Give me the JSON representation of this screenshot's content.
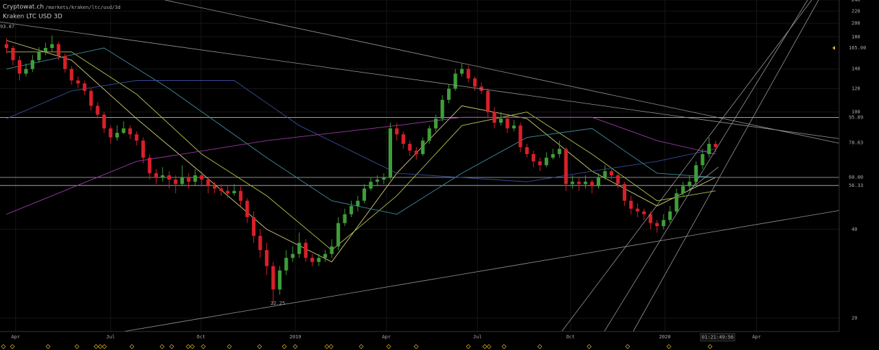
{
  "chart_data": {
    "type": "candlestick",
    "title": "Cryptowat.ch",
    "subtitle": "/markets/kraken/ltc/usd/3d",
    "market": "Kraken LTC USD 3D",
    "countdown": "01:21:49:56",
    "annotations": [
      "93.87",
      "22.25"
    ],
    "log_scale": true,
    "grid": true,
    "up_color": "#3f9e3a",
    "down_color": "#d8202a",
    "xlim": [
      -1,
      128
    ],
    "xticks": [
      {
        "value": 1.4,
        "label": "Apr"
      },
      {
        "value": 16,
        "label": "Jul"
      },
      {
        "value": 29.9,
        "label": "Oct"
      },
      {
        "value": 44.4,
        "label": "2019"
      },
      {
        "value": 58.4,
        "label": "Apr"
      },
      {
        "value": 72.4,
        "label": "Jul"
      },
      {
        "value": 86.7,
        "label": "Oct"
      },
      {
        "value": 101.2,
        "label": "2020"
      },
      {
        "value": 115.3,
        "label": "Apr"
      }
    ],
    "ylim": [
      18,
      240
    ],
    "yticks": [
      20,
      40,
      100,
      120,
      140,
      180,
      200,
      220,
      240
    ],
    "price_levels": [
      {
        "value": 165,
        "label": "165.00"
      },
      {
        "value": 95.89,
        "label": "95.89"
      },
      {
        "value": 78.63,
        "label": "78.63"
      },
      {
        "value": 60,
        "label": "60.00"
      },
      {
        "value": 56.33,
        "label": "56.33"
      }
    ],
    "open": [
      170,
      165,
      150,
      135,
      140,
      150,
      160,
      165,
      170,
      155,
      140,
      128,
      125,
      118,
      105,
      98,
      88,
      82,
      85,
      88,
      84,
      80,
      70,
      62,
      60,
      61,
      59,
      57,
      60,
      58,
      61,
      59,
      56,
      55,
      54,
      53,
      54,
      50,
      44,
      38,
      34,
      30,
      25,
      29,
      32,
      33,
      36,
      32,
      31,
      32,
      33,
      35,
      42,
      45,
      48,
      50,
      55,
      58,
      59,
      60,
      88,
      84,
      78,
      74,
      72,
      80,
      88,
      95,
      110,
      120,
      135,
      140,
      130,
      122,
      118,
      100,
      92,
      95,
      88,
      90,
      76,
      72,
      68,
      66,
      70,
      72,
      75,
      57,
      58,
      57,
      58,
      56,
      60,
      63,
      61,
      57,
      50,
      47,
      46,
      45,
      42,
      41,
      43,
      46,
      53,
      56,
      58,
      66,
      72,
      78
    ],
    "high": [
      178,
      168,
      155,
      146,
      156,
      166,
      172,
      182,
      173,
      158,
      143,
      132,
      128,
      120,
      108,
      100,
      90,
      90,
      93,
      90,
      86,
      82,
      72,
      64,
      65,
      63,
      61,
      66,
      62,
      64,
      63,
      60,
      58,
      57,
      56,
      57,
      56,
      51,
      46,
      40,
      36,
      31,
      30,
      34,
      35,
      39,
      37,
      33,
      33,
      34,
      37,
      44,
      47,
      50,
      52,
      57,
      60,
      61,
      62,
      92,
      92,
      86,
      80,
      76,
      82,
      90,
      98,
      114,
      124,
      140,
      146,
      144,
      132,
      126,
      120,
      104,
      100,
      97,
      94,
      92,
      78,
      74,
      70,
      73,
      75,
      80,
      76,
      61,
      60,
      61,
      59,
      62,
      66,
      64,
      62,
      58,
      52,
      49,
      47,
      46,
      43,
      45,
      48,
      55,
      58,
      61,
      68,
      75,
      82,
      80
    ],
    "low": [
      158,
      144,
      128,
      132,
      137,
      147,
      156,
      160,
      150,
      136,
      124,
      121,
      114,
      101,
      95,
      85,
      78,
      80,
      84,
      81,
      77,
      67,
      59,
      57,
      58,
      55,
      53,
      56,
      55,
      56,
      56,
      53,
      53,
      52,
      51,
      52,
      48,
      42,
      36,
      32,
      28,
      22.25,
      24,
      28,
      31,
      32,
      31,
      30,
      30,
      31,
      32,
      34,
      41,
      44,
      46,
      49,
      54,
      56,
      57,
      59,
      80,
      75,
      71,
      69,
      71,
      78,
      86,
      93,
      107,
      118,
      132,
      126,
      118,
      115,
      96,
      88,
      90,
      85,
      86,
      73,
      70,
      65,
      63,
      65,
      69,
      70,
      54,
      55,
      54,
      55,
      53,
      55,
      59,
      59,
      55,
      48,
      45,
      44,
      43,
      40,
      39,
      40,
      42,
      45,
      52,
      54,
      57,
      64,
      70,
      73
    ],
    "close": [
      165,
      150,
      135,
      140,
      150,
      160,
      165,
      170,
      155,
      140,
      128,
      125,
      118,
      105,
      98,
      88,
      82,
      85,
      88,
      84,
      80,
      70,
      62,
      60,
      61,
      59,
      57,
      60,
      58,
      61,
      59,
      56,
      55,
      54,
      53,
      54,
      50,
      44,
      38,
      34,
      30,
      25,
      29,
      32,
      33,
      36,
      32,
      31,
      32,
      33,
      35,
      42,
      45,
      48,
      50,
      55,
      58,
      59,
      60,
      88,
      84,
      78,
      74,
      72,
      80,
      88,
      95,
      110,
      120,
      135,
      140,
      130,
      122,
      118,
      100,
      92,
      95,
      88,
      90,
      76,
      72,
      68,
      66,
      70,
      72,
      75,
      57,
      58,
      57,
      58,
      56,
      60,
      63,
      61,
      57,
      50,
      47,
      46,
      45,
      42,
      41,
      43,
      46,
      53,
      56,
      58,
      66,
      72,
      78,
      76
    ],
    "series": [
      {
        "color": "#d8d27a",
        "x": [
          0,
          10,
          20,
          30,
          40,
          50,
          60,
          70,
          80,
          90,
          100,
          109
        ],
        "values": [
          175,
          150,
          95,
          62,
          40,
          31,
          62,
          105,
          95,
          63,
          48,
          60
        ]
      },
      {
        "color": "#b5c94a",
        "x": [
          0,
          10,
          20,
          30,
          40,
          50,
          60,
          70,
          80,
          90,
          100,
          109
        ],
        "values": [
          160,
          160,
          115,
          72,
          52,
          34,
          52,
          90,
          100,
          72,
          50,
          54
        ]
      },
      {
        "color": "#3f8fa0",
        "x": [
          0,
          15,
          25,
          40,
          50,
          60,
          70,
          80,
          90,
          100,
          109
        ],
        "values": [
          140,
          165,
          120,
          70,
          50,
          45,
          62,
          82,
          88,
          62,
          60
        ]
      },
      {
        "color": "#3b4d9a",
        "x": [
          0,
          10,
          20,
          35,
          45,
          60,
          80,
          90,
          100,
          109
        ],
        "values": [
          95,
          118,
          128,
          128,
          90,
          62,
          58,
          63,
          68,
          75
        ]
      },
      {
        "color": "#a03aa8",
        "x": [
          0,
          20,
          40,
          60,
          70,
          90,
          100,
          109
        ],
        "values": [
          45,
          68,
          80,
          90,
          96,
          96,
          80,
          72
        ]
      }
    ]
  }
}
